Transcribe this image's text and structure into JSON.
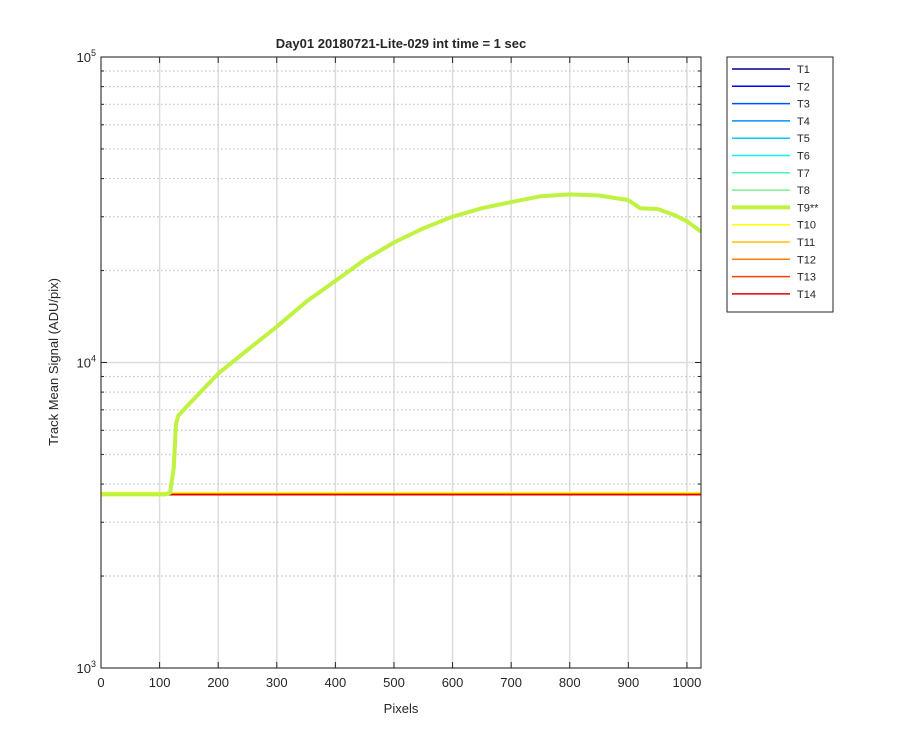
{
  "chart_data": {
    "type": "line",
    "title": "Day01 20180721-Lite-029 int time = 1 sec",
    "xlabel": "Pixels",
    "ylabel": "Track Mean Signal (ADU/pix)",
    "xlim": [
      0,
      1024
    ],
    "ylim": [
      1000,
      100000
    ],
    "yscale": "log",
    "grid": true,
    "legend_position": "outside-top-right",
    "x_ticks": [
      0,
      100,
      200,
      300,
      400,
      500,
      600,
      700,
      800,
      900,
      1000
    ],
    "x_tick_labels": [
      "0",
      "100",
      "200",
      "300",
      "400",
      "500",
      "600",
      "700",
      "800",
      "900",
      "1000"
    ],
    "y_tick_labels": [
      {
        "value": 1000,
        "base": "10",
        "exp": "3"
      },
      {
        "value": 10000,
        "base": "10",
        "exp": "4"
      },
      {
        "value": 100000,
        "base": "10",
        "exp": "5"
      }
    ],
    "flat_x": [
      0,
      1024
    ],
    "series": [
      {
        "name": "T1",
        "color": "#00008f",
        "width": 1.5,
        "values": [
          3700,
          3700
        ]
      },
      {
        "name": "T2",
        "color": "#0000ff",
        "width": 1.5,
        "values": [
          3700,
          3700
        ]
      },
      {
        "name": "T3",
        "color": "#0050ff",
        "width": 1.5,
        "values": [
          3700,
          3700
        ]
      },
      {
        "name": "T4",
        "color": "#0090ff",
        "width": 1.5,
        "values": [
          3700,
          3700
        ]
      },
      {
        "name": "T5",
        "color": "#00c8ff",
        "width": 1.5,
        "values": [
          3700,
          3700
        ]
      },
      {
        "name": "T6",
        "color": "#10f0f0",
        "width": 1.5,
        "values": [
          3700,
          3700
        ]
      },
      {
        "name": "T7",
        "color": "#50f0c0",
        "width": 1.5,
        "values": [
          3700,
          3700
        ]
      },
      {
        "name": "T8",
        "color": "#80f090",
        "width": 1.5,
        "values": [
          3700,
          3700
        ]
      },
      {
        "name": "T9**",
        "color": "#bff241",
        "width": 4,
        "x": [
          0,
          110,
          118,
          124,
          128,
          132,
          150,
          200,
          250,
          300,
          350,
          400,
          450,
          500,
          550,
          600,
          650,
          700,
          750,
          800,
          850,
          900,
          920,
          950,
          980,
          1000,
          1024
        ],
        "values": [
          3700,
          3700,
          3750,
          4500,
          6300,
          6700,
          7300,
          9200,
          11000,
          13100,
          15800,
          18500,
          21700,
          24700,
          27500,
          30000,
          32000,
          33500,
          35000,
          35500,
          35200,
          34000,
          32000,
          31800,
          30300,
          29000,
          26800
        ]
      },
      {
        "name": "T10",
        "color": "#ffff00",
        "width": 1.5,
        "values": [
          3750,
          3750
        ]
      },
      {
        "name": "T11",
        "color": "#ffbf00",
        "width": 1.5,
        "values": [
          3720,
          3720
        ]
      },
      {
        "name": "T12",
        "color": "#ff8000",
        "width": 1.5,
        "values": [
          3700,
          3700
        ]
      },
      {
        "name": "T13",
        "color": "#ff4000",
        "width": 1.5,
        "values": [
          3700,
          3700
        ]
      },
      {
        "name": "T14",
        "color": "#e00000",
        "width": 1.5,
        "values": [
          3690,
          3690
        ]
      }
    ]
  }
}
